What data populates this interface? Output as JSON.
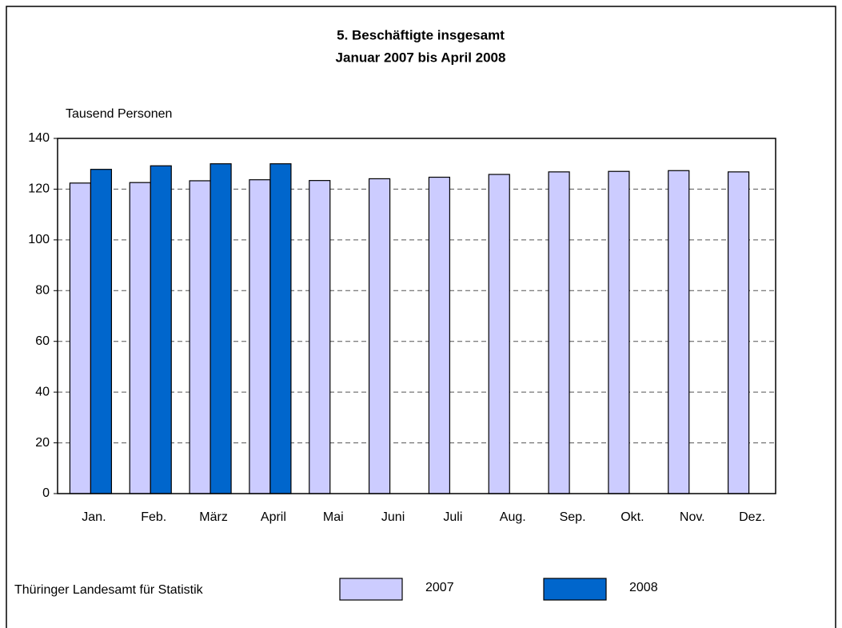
{
  "chart_data": {
    "type": "bar",
    "title": "5. Beschäftigte insgesamt",
    "subtitle": "Januar 2007 bis April 2008",
    "y_label": "Tausend Personen",
    "source": "Thüringer Landesamt für Statistik",
    "categories": [
      "Jan.",
      "Feb.",
      "März",
      "April",
      "Mai",
      "Juni",
      "Juli",
      "Aug.",
      "Sep.",
      "Okt.",
      "Nov.",
      "Dez."
    ],
    "series": [
      {
        "name": "2007",
        "color": "#ccccff",
        "values": [
          122.4,
          122.6,
          123.3,
          123.7,
          123.4,
          124.1,
          124.7,
          125.8,
          126.8,
          127.0,
          127.3,
          126.8
        ]
      },
      {
        "name": "2008",
        "color": "#0066cc",
        "values": [
          127.8,
          129.2,
          130.0,
          130.0,
          null,
          null,
          null,
          null,
          null,
          null,
          null,
          null
        ]
      }
    ],
    "ylim": [
      0,
      140
    ],
    "yticks": [
      0,
      20,
      40,
      60,
      80,
      100,
      120,
      140
    ],
    "grid": true
  }
}
